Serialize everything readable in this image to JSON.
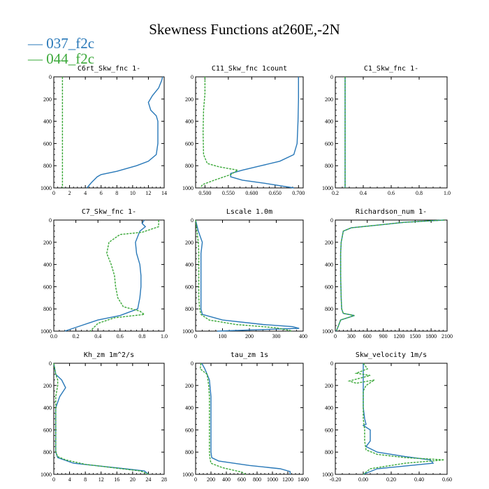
{
  "title": "Skewness Functions at260E,-2N",
  "legend": [
    {
      "label": "— 037_f2c",
      "color": "#2878b8"
    },
    {
      "label": "— 044_f2c",
      "color": "#3aa838"
    }
  ],
  "chart_data": [
    {
      "type": "line",
      "title": "C6rt_Skw_fnc   1-",
      "xlim": [
        0,
        14
      ],
      "ylim": [
        1000,
        0
      ],
      "xticks": [
        0,
        2,
        4,
        6,
        8,
        10,
        12,
        14
      ],
      "xtick_labels": [
        "0",
        "2",
        "4",
        "6",
        "8",
        "10",
        "12",
        "14"
      ],
      "yticks": [
        0,
        200,
        400,
        600,
        800,
        1000
      ],
      "ytick_labels": [
        "0",
        "200",
        "400",
        "600",
        "800",
        "1000"
      ],
      "series": [
        {
          "name": "037_f2c",
          "color": "#2878b8",
          "dashed": false,
          "x": [
            13.8,
            13.7,
            13.3,
            12.5,
            12.0,
            12.3,
            13.0,
            13.2,
            13.2,
            13.2,
            13.0,
            12.0,
            10.5,
            8.0,
            6.0,
            5.5,
            4.8,
            4.2
          ],
          "y": [
            0,
            30,
            100,
            170,
            230,
            300,
            350,
            400,
            500,
            600,
            700,
            760,
            800,
            850,
            880,
            900,
            950,
            1000
          ]
        },
        {
          "name": "044_f2c",
          "color": "#3aa838",
          "dashed": true,
          "x": [
            1.1,
            1.1,
            1.1
          ],
          "y": [
            0,
            500,
            1000
          ]
        }
      ]
    },
    {
      "type": "line",
      "title": "C11_Skw_fnc   1count",
      "xlim": [
        0.48,
        0.71
      ],
      "ylim": [
        1000,
        0
      ],
      "xticks": [
        0.5,
        0.55,
        0.6,
        0.65,
        0.7
      ],
      "xtick_labels": [
        "0.500",
        "0.550",
        "0.600",
        "0.650",
        "0.700"
      ],
      "yticks": [
        0,
        200,
        400,
        600,
        800,
        1000
      ],
      "ytick_labels": [
        "0",
        "200",
        "400",
        "600",
        "800",
        "1000"
      ],
      "series": [
        {
          "name": "037_f2c",
          "color": "#2878b8",
          "dashed": false,
          "x": [
            0.7,
            0.7,
            0.699,
            0.697,
            0.69,
            0.66,
            0.62,
            0.58,
            0.555,
            0.555,
            0.58,
            0.63,
            0.69
          ],
          "y": [
            0,
            200,
            400,
            600,
            700,
            760,
            800,
            840,
            870,
            900,
            930,
            960,
            1000
          ]
        },
        {
          "name": "044_f2c",
          "color": "#3aa838",
          "dashed": true,
          "x": [
            0.5,
            0.5,
            0.497,
            0.496,
            0.497,
            0.505,
            0.53,
            0.57,
            0.555,
            0.52,
            0.495,
            0.49
          ],
          "y": [
            0,
            150,
            300,
            500,
            700,
            780,
            810,
            840,
            880,
            930,
            970,
            1000
          ]
        }
      ]
    },
    {
      "type": "line",
      "title": "C1_Skw_fnc   1-",
      "xlim": [
        0.2,
        1.0
      ],
      "ylim": [
        1000,
        0
      ],
      "xticks": [
        0.2,
        0.4,
        0.6,
        0.8,
        1.0
      ],
      "xtick_labels": [
        "0.2",
        "0.4",
        "0.6",
        "0.8",
        "1.0"
      ],
      "yticks": [
        0,
        200,
        400,
        600,
        800,
        1000
      ],
      "ytick_labels": [
        "0",
        "200",
        "400",
        "600",
        "800",
        "1000"
      ],
      "series": [
        {
          "name": "037_f2c",
          "color": "#2878b8",
          "dashed": false,
          "x": [
            0.27,
            0.27,
            0.27
          ],
          "y": [
            0,
            500,
            1000
          ]
        },
        {
          "name": "044_f2c",
          "color": "#3aa838",
          "dashed": true,
          "x": [
            0.27,
            0.27,
            0.27
          ],
          "y": [
            0,
            500,
            1000
          ]
        }
      ]
    },
    {
      "type": "line",
      "title": "C7_Skw_fnc   1-",
      "xlim": [
        0.0,
        1.0
      ],
      "ylim": [
        1000,
        0
      ],
      "xticks": [
        0.0,
        0.2,
        0.4,
        0.6,
        0.8,
        1.0
      ],
      "xtick_labels": [
        "0.0",
        "0.2",
        "0.4",
        "0.6",
        "0.8",
        "1.0"
      ],
      "yticks": [
        0,
        200,
        400,
        600,
        800,
        1000
      ],
      "ytick_labels": [
        "0",
        "200",
        "400",
        "600",
        "800",
        "1000"
      ],
      "series": [
        {
          "name": "037_f2c",
          "color": "#2878b8",
          "dashed": false,
          "x": [
            0.82,
            0.8,
            0.83,
            0.78,
            0.74,
            0.75,
            0.78,
            0.79,
            0.79,
            0.78,
            0.76,
            0.6,
            0.4,
            0.25,
            0.1
          ],
          "y": [
            0,
            30,
            60,
            100,
            200,
            300,
            400,
            500,
            600,
            700,
            800,
            860,
            900,
            950,
            1000
          ]
        },
        {
          "name": "044_f2c",
          "color": "#3aa838",
          "dashed": true,
          "x": [
            0.95,
            0.95,
            0.8,
            0.6,
            0.5,
            0.48,
            0.52,
            0.55,
            0.56,
            0.58,
            0.63,
            0.78,
            0.82,
            0.55,
            0.4,
            0.33
          ],
          "y": [
            0,
            60,
            110,
            130,
            200,
            300,
            400,
            500,
            600,
            700,
            780,
            820,
            850,
            880,
            930,
            1000
          ]
        }
      ]
    },
    {
      "type": "line",
      "title": "Lscale   1.0m",
      "xlim": [
        0,
        400
      ],
      "ylim": [
        1000,
        0
      ],
      "xticks": [
        0,
        100,
        200,
        300,
        400
      ],
      "xtick_labels": [
        "0",
        "100",
        "200",
        "300",
        "400"
      ],
      "yticks": [
        0,
        200,
        400,
        600,
        800,
        1000
      ],
      "ytick_labels": [
        "0",
        "200",
        "400",
        "600",
        "800",
        "1000"
      ],
      "series": [
        {
          "name": "037_f2c",
          "color": "#2878b8",
          "dashed": false,
          "x": [
            0,
            10,
            25,
            20,
            20,
            20,
            20,
            25,
            100,
            250,
            360,
            385,
            80
          ],
          "y": [
            0,
            100,
            200,
            300,
            500,
            700,
            800,
            850,
            900,
            940,
            960,
            975,
            1000
          ]
        },
        {
          "name": "044_f2c",
          "color": "#3aa838",
          "dashed": true,
          "x": [
            0,
            5,
            10,
            12,
            12,
            12,
            15,
            20,
            50,
            150,
            300,
            360
          ],
          "y": [
            0,
            100,
            200,
            300,
            500,
            700,
            800,
            850,
            900,
            940,
            970,
            1000
          ]
        }
      ]
    },
    {
      "type": "line",
      "title": "Richardson_num   1-",
      "xlim": [
        0,
        2100
      ],
      "ylim": [
        1000,
        0
      ],
      "xticks": [
        0,
        300,
        600,
        900,
        1200,
        1500,
        1800,
        2100
      ],
      "xtick_labels": [
        "0",
        "300",
        "600",
        "900",
        "1200",
        "1500",
        "1800",
        "2100"
      ],
      "yticks": [
        0,
        200,
        400,
        600,
        800,
        1000
      ],
      "ytick_labels": [
        "0",
        "200",
        "400",
        "600",
        "800",
        "1000"
      ],
      "series": [
        {
          "name": "037_f2c",
          "color": "#2878b8",
          "dashed": false,
          "x": [
            2050,
            1300,
            900,
            300,
            150,
            110,
            100,
            100,
            110,
            120,
            150,
            360,
            100,
            20
          ],
          "y": [
            0,
            20,
            40,
            70,
            100,
            200,
            300,
            500,
            700,
            800,
            840,
            860,
            900,
            1000
          ]
        },
        {
          "name": "044_f2c",
          "color": "#3aa838",
          "dashed": true,
          "x": [
            2050,
            1300,
            900,
            300,
            150,
            110,
            100,
            100,
            110,
            120,
            150,
            360,
            100,
            20
          ],
          "y": [
            0,
            20,
            40,
            70,
            100,
            200,
            300,
            500,
            700,
            800,
            840,
            860,
            900,
            1000
          ]
        }
      ]
    },
    {
      "type": "line",
      "title": "Kh_zm   1m^2/s",
      "xlim": [
        0,
        28
      ],
      "ylim": [
        1000,
        0
      ],
      "xticks": [
        0,
        4,
        8,
        12,
        16,
        20,
        24,
        28
      ],
      "xtick_labels": [
        "0",
        "4",
        "8",
        "12",
        "16",
        "20",
        "24",
        "28"
      ],
      "yticks": [
        0,
        200,
        400,
        600,
        800,
        1000
      ],
      "ytick_labels": [
        "0",
        "200",
        "400",
        "600",
        "800",
        "1000"
      ],
      "series": [
        {
          "name": "037_f2c",
          "color": "#2878b8",
          "dashed": false,
          "x": [
            0,
            0.5,
            2,
            3,
            1.5,
            0.5,
            0.5,
            0.5,
            1,
            5,
            13,
            18,
            23,
            24
          ],
          "y": [
            0,
            100,
            150,
            220,
            300,
            400,
            600,
            800,
            850,
            900,
            930,
            950,
            970,
            1000
          ]
        },
        {
          "name": "044_f2c",
          "color": "#3aa838",
          "dashed": true,
          "x": [
            0,
            0.5,
            1,
            1,
            0.5,
            0.5,
            0.5,
            0.5,
            1,
            3,
            8,
            15,
            22,
            24
          ],
          "y": [
            0,
            100,
            150,
            200,
            300,
            400,
            600,
            800,
            840,
            870,
            910,
            940,
            970,
            1000
          ]
        }
      ]
    },
    {
      "type": "line",
      "title": "tau_zm   1s",
      "xlim": [
        0,
        1400
      ],
      "ylim": [
        1000,
        0
      ],
      "xticks": [
        0,
        200,
        400,
        600,
        800,
        1000,
        1200,
        1400
      ],
      "xtick_labels": [
        "0",
        "200",
        "400",
        "600",
        "800",
        "1000",
        "1200",
        "1400"
      ],
      "yticks": [
        0,
        200,
        400,
        600,
        800,
        1000
      ],
      "ytick_labels": [
        "0",
        "200",
        "400",
        "600",
        "800",
        "1000"
      ],
      "series": [
        {
          "name": "037_f2c",
          "color": "#2878b8",
          "dashed": false,
          "x": [
            80,
            120,
            150,
            180,
            200,
            200,
            200,
            200,
            210,
            300,
            700,
            1100,
            1230,
            1230
          ],
          "y": [
            0,
            50,
            100,
            150,
            300,
            500,
            700,
            800,
            850,
            880,
            920,
            950,
            975,
            1000
          ]
        },
        {
          "name": "044_f2c",
          "color": "#3aa838",
          "dashed": true,
          "x": [
            70,
            60,
            150,
            170,
            180,
            180,
            180,
            180,
            185,
            200,
            350,
            600,
            650
          ],
          "y": [
            0,
            50,
            100,
            200,
            300,
            500,
            700,
            800,
            850,
            900,
            940,
            980,
            1000
          ]
        }
      ]
    },
    {
      "type": "line",
      "title": "Skw_velocity   1m/s",
      "xlim": [
        -0.2,
        0.6
      ],
      "ylim": [
        1000,
        0
      ],
      "xticks": [
        -0.2,
        0.0,
        0.2,
        0.4,
        0.6
      ],
      "xtick_labels": [
        "-0.20",
        "0.00",
        "0.20",
        "0.40",
        "0.60"
      ],
      "yticks": [
        0,
        200,
        400,
        600,
        800,
        1000
      ],
      "ytick_labels": [
        "0",
        "200",
        "400",
        "600",
        "800",
        "1000"
      ],
      "series": [
        {
          "name": "037_f2c",
          "color": "#2878b8",
          "dashed": false,
          "x": [
            0,
            0,
            0,
            0,
            0,
            0.01,
            0.02,
            0.0,
            0.05,
            0.05,
            0.02,
            0.1,
            0.3,
            0.48,
            0.5,
            0.1,
            0.0
          ],
          "y": [
            0,
            100,
            200,
            300,
            400,
            500,
            550,
            560,
            600,
            700,
            750,
            800,
            840,
            870,
            900,
            950,
            1000
          ]
        },
        {
          "name": "044_f2c",
          "color": "#3aa838",
          "dashed": true,
          "x": [
            0,
            0.03,
            -0.05,
            0.05,
            -0.1,
            -0.05,
            0.08,
            0.02,
            0.0,
            0.0,
            0.0,
            0.01,
            0.01,
            0.02,
            0.1,
            0.3,
            0.58,
            0.3,
            0.05,
            0.0
          ],
          "y": [
            0,
            50,
            90,
            110,
            160,
            180,
            150,
            200,
            250,
            400,
            500,
            600,
            700,
            780,
            820,
            850,
            870,
            900,
            950,
            1000
          ]
        }
      ]
    }
  ]
}
